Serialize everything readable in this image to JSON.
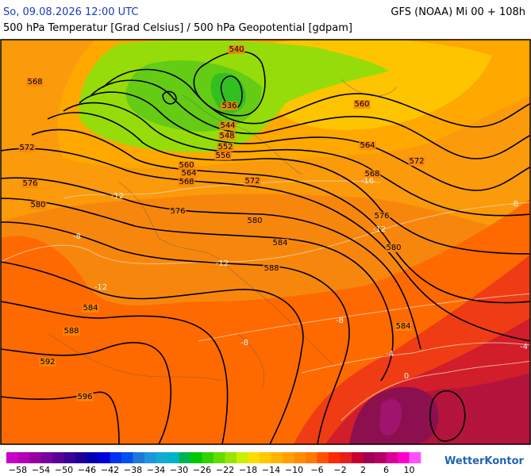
{
  "header": {
    "valid_time": "So, 09.08.2026 12:00 UTC",
    "model_run": "GFS (NOAA) Mi 00 + 108h",
    "subtitle": "500 hPa Temperatur [Grad Celsius] / 500 hPa Geopotential [gdpam]"
  },
  "contour_labels": [
    540,
    568,
    536,
    560,
    544,
    548,
    552,
    556,
    572,
    564,
    560,
    564,
    568,
    572,
    568,
    572,
    576,
    580,
    576,
    580,
    576,
    584,
    580,
    588,
    584,
    588,
    584,
    592,
    596
  ],
  "temperature_labels": [
    {
      "value": -12,
      "label": "-12"
    },
    {
      "value": -16,
      "label": "-16"
    },
    {
      "value": -8,
      "label": "-8"
    },
    {
      "value": -12,
      "label": "-12"
    },
    {
      "value": -12,
      "label": "-12"
    },
    {
      "value": -12,
      "label": "-12"
    },
    {
      "value": -8,
      "label": "-8"
    },
    {
      "value": -8,
      "label": "-8"
    },
    {
      "value": -8,
      "label": "-8"
    },
    {
      "value": -4,
      "label": "-4"
    },
    {
      "value": -4,
      "label": "-4"
    },
    0
  ],
  "colorbar": {
    "ticks": [
      {
        "value": -58,
        "label": "−58"
      },
      {
        "value": -54,
        "label": "−54"
      },
      {
        "value": -50,
        "label": "−50"
      },
      {
        "value": -46,
        "label": "−46"
      },
      {
        "value": -42,
        "label": "−42"
      },
      {
        "value": -38,
        "label": "−38"
      },
      {
        "value": -34,
        "label": "−34"
      },
      {
        "value": -30,
        "label": "−30"
      },
      {
        "value": -26,
        "label": "−26"
      },
      {
        "value": -22,
        "label": "−22"
      },
      {
        "value": -18,
        "label": "−18"
      },
      {
        "value": -14,
        "label": "−14"
      },
      {
        "value": -10,
        "label": "−10"
      },
      {
        "value": -6,
        "label": "−6"
      },
      {
        "value": -2,
        "label": "−2"
      },
      2,
      6,
      10
    ]
  },
  "logo": "WetterKontor"
}
